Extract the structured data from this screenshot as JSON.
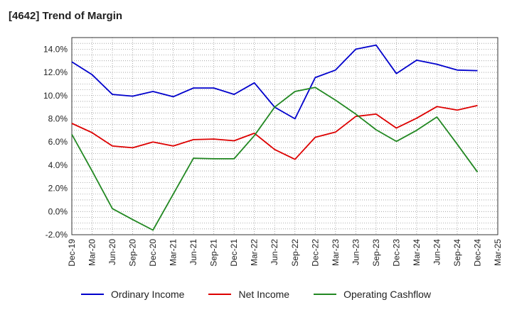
{
  "title": "[4642]  Trend of Margin",
  "chart_data": {
    "type": "line",
    "categories": [
      "Dec-19",
      "Mar-20",
      "Jun-20",
      "Sep-20",
      "Dec-20",
      "Mar-21",
      "Jun-21",
      "Sep-21",
      "Dec-21",
      "Mar-22",
      "Jun-22",
      "Sep-22",
      "Dec-22",
      "Mar-23",
      "Jun-23",
      "Sep-23",
      "Dec-23",
      "Mar-24",
      "Jun-24",
      "Sep-24",
      "Dec-24",
      "Mar-25"
    ],
    "ylim": [
      -2.0,
      15.0
    ],
    "yticks": [
      -2.0,
      0.0,
      2.0,
      4.0,
      6.0,
      8.0,
      10.0,
      12.0,
      14.0
    ],
    "ytick_labels": [
      "-2.0%",
      "0.0%",
      "2.0%",
      "4.0%",
      "6.0%",
      "8.0%",
      "10.0%",
      "12.0%",
      "14.0%"
    ],
    "grid": true,
    "legend_position": "bottom",
    "series": [
      {
        "name": "Ordinary Income",
        "color": "#0000cc",
        "values": [
          12.9,
          11.8,
          10.1,
          9.95,
          10.35,
          9.9,
          10.65,
          10.65,
          10.1,
          11.1,
          9.0,
          8.0,
          11.55,
          12.2,
          14.0,
          14.35,
          11.9,
          13.05,
          12.7,
          12.2,
          12.15,
          null
        ]
      },
      {
        "name": "Net Income",
        "color": "#dd0000",
        "values": [
          7.6,
          6.8,
          5.65,
          5.5,
          6.0,
          5.65,
          6.2,
          6.25,
          6.1,
          6.75,
          5.35,
          4.5,
          6.4,
          6.85,
          8.2,
          8.4,
          7.2,
          8.05,
          9.05,
          8.75,
          9.15,
          null
        ]
      },
      {
        "name": "Operating Cashflow",
        "color": "#228822",
        "values": [
          6.65,
          3.5,
          0.25,
          -0.7,
          -1.6,
          1.5,
          4.6,
          4.55,
          4.55,
          6.55,
          9.0,
          10.35,
          10.7,
          9.6,
          8.4,
          7.05,
          6.05,
          7.0,
          8.15,
          5.8,
          3.4,
          null
        ]
      }
    ]
  }
}
